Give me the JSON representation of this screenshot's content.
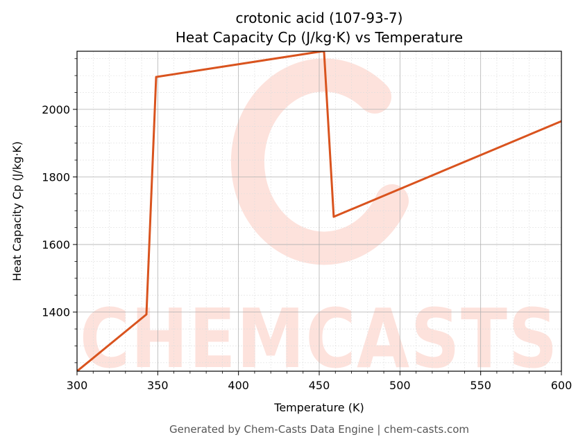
{
  "chart_data": {
    "type": "line",
    "title_line1": "crotonic acid (107-93-7)",
    "title_line2": "Heat Capacity Cp (J/kg·K) vs Temperature",
    "xlabel": "Temperature (K)",
    "ylabel": "Heat Capacity Cp (J/kg·K)",
    "xlim": [
      300,
      600
    ],
    "ylim": [
      1225,
      2172
    ],
    "xticks": [
      300,
      350,
      400,
      450,
      500,
      550,
      600
    ],
    "yticks": [
      1400,
      1600,
      1800,
      2000
    ],
    "grid": true,
    "series": [
      {
        "color": "#d9531e",
        "x": [
          300,
          343,
          349,
          452,
          453,
          459,
          600
        ],
        "y": [
          1225,
          1393,
          2096,
          2172,
          2170,
          1682,
          1965
        ]
      }
    ]
  },
  "watermark": {
    "text": "CHEMCASTS"
  },
  "footer": "Generated by Chem-Casts Data Engine | chem-casts.com"
}
